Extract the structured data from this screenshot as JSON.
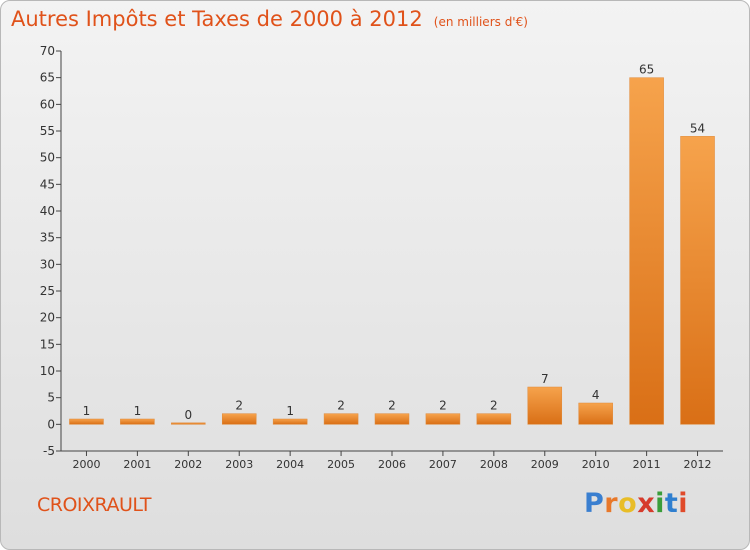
{
  "header": {
    "title": "Autres Impôts et Taxes de 2000 à 2012",
    "unit": "(en milliers d'€)"
  },
  "footer": {
    "commune": "CROIXRAULT",
    "logo_letters": [
      "P",
      "r",
      "o",
      "x",
      "i",
      "t",
      "i"
    ],
    "logo_colors": [
      "#3a7fd0",
      "#e8782a",
      "#e8bd27",
      "#d63b2c",
      "#3a9d3a",
      "#2f7fcf",
      "#e04a2a"
    ]
  },
  "chart_data": {
    "type": "bar",
    "title": "Autres Impôts et Taxes de 2000 à 2012",
    "subtitle": "(en milliers d'€)",
    "categories": [
      "2000",
      "2001",
      "2002",
      "2003",
      "2004",
      "2005",
      "2006",
      "2007",
      "2008",
      "2009",
      "2010",
      "2011",
      "2012"
    ],
    "values": [
      1,
      1,
      0,
      2,
      1,
      2,
      2,
      2,
      2,
      7,
      4,
      65,
      54
    ],
    "ylim": [
      -5,
      70
    ],
    "yticks": [
      -5,
      0,
      5,
      10,
      15,
      20,
      25,
      30,
      35,
      40,
      45,
      50,
      55,
      60,
      65,
      70
    ],
    "grid": false,
    "bar_color": "#f08c2a",
    "text_color": "#e0521a"
  }
}
